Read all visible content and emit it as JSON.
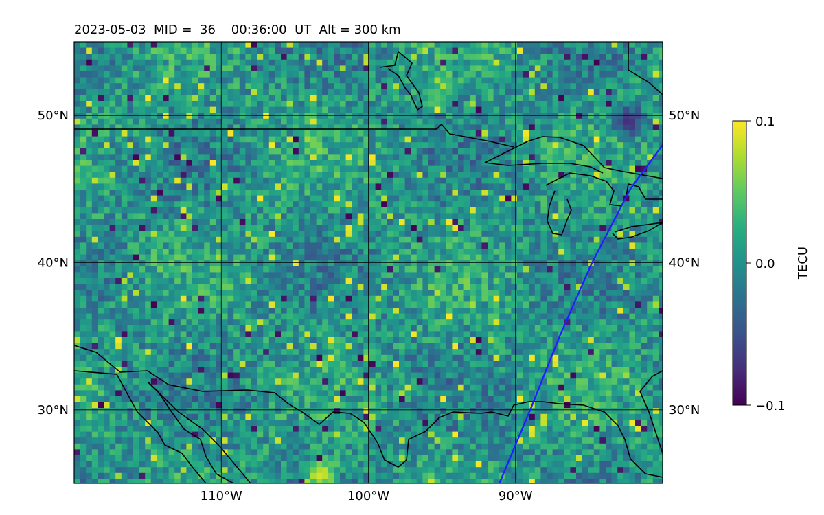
{
  "chart_data": {
    "type": "heatmap",
    "title": "2023-05-03  MID =  36    00:36:00  UT  Alt = 300 km",
    "xlim": [
      -120,
      -80
    ],
    "ylim": [
      25,
      55
    ],
    "x_ticks": [
      {
        "value": -110,
        "label": "110°W"
      },
      {
        "value": -100,
        "label": "100°W"
      },
      {
        "value": -90,
        "label": "90°W"
      }
    ],
    "y_ticks": [
      {
        "value": 30,
        "label": "30°N"
      },
      {
        "value": 40,
        "label": "40°N"
      },
      {
        "value": 50,
        "label": "50°N"
      }
    ],
    "colorbar": {
      "label": "TECU",
      "colormap": "viridis",
      "min": -0.1,
      "max": 0.1,
      "ticks": [
        {
          "value": 0.1,
          "label": "0.1"
        },
        {
          "value": 0.0,
          "label": "0.0"
        },
        {
          "value": -0.1,
          "label": "−0.1"
        }
      ]
    },
    "grid": true,
    "satellite_track": {
      "color": "#1f1fff",
      "points": [
        [
          -91.1,
          25.0
        ],
        [
          -89.0,
          30.0
        ],
        [
          -87.0,
          35.0
        ],
        [
          -84.8,
          40.0
        ],
        [
          -82.2,
          45.0
        ],
        [
          -80.0,
          48.0
        ]
      ]
    },
    "features": {
      "extremes": [
        {
          "lon": -103.4,
          "lat": 25.8,
          "value": 0.1
        },
        {
          "lon": -82.5,
          "lat": 49.8,
          "value": -0.08
        },
        {
          "lon": -95.5,
          "lat": 51.5,
          "value": 0.05
        }
      ]
    },
    "coastline_color": "#000000"
  }
}
